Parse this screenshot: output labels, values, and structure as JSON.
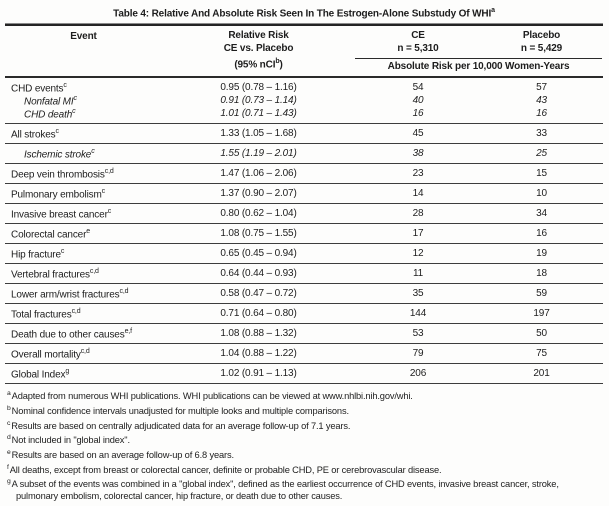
{
  "title": {
    "text": "Table 4: Relative And Absolute Risk Seen In The Estrogen-Alone Substudy Of WHI",
    "sup": "a"
  },
  "header": {
    "event": "Event",
    "relative_risk_line1": "Relative Risk",
    "relative_risk_line2": "CE vs. Placebo",
    "relative_risk_line3_pre": "(95% nCI",
    "relative_risk_line3_sup": "b",
    "relative_risk_line3_post": ")",
    "ce_label": "CE",
    "ce_n": "n = 5,310",
    "placebo_label": "Placebo",
    "placebo_n": "n = 5,429",
    "absolute_risk": "Absolute Risk per 10,000 Women-Years"
  },
  "table": {
    "rows": [
      {
        "event": "CHD events",
        "sup": "c",
        "relative_risk": "0.95 (0.78 – 1.16)",
        "ce": "54",
        "placebo": "57"
      },
      {
        "event": "Nonfatal MI",
        "sup": "c",
        "relative_risk": "0.91 (0.73 – 1.14)",
        "ce": "40",
        "placebo": "43"
      },
      {
        "event": "CHD death",
        "sup": "c",
        "relative_risk": "1.01 (0.71 – 1.43)",
        "ce": "16",
        "placebo": "16"
      },
      {
        "event": "All strokes",
        "sup": "c",
        "relative_risk": "1.33 (1.05 – 1.68)",
        "ce": "45",
        "placebo": "33"
      },
      {
        "event": "Ischemic stroke",
        "sup": "c",
        "relative_risk": "1.55 (1.19 – 2.01)",
        "ce": "38",
        "placebo": "25"
      },
      {
        "event": "Deep vein thrombosis",
        "sup": "c,d",
        "relative_risk": "1.47 (1.06 – 2.06)",
        "ce": "23",
        "placebo": "15"
      },
      {
        "event": "Pulmonary embolism",
        "sup": "c",
        "relative_risk": "1.37 (0.90 – 2.07)",
        "ce": "14",
        "placebo": "10"
      },
      {
        "event": "Invasive breast cancer",
        "sup": "c",
        "relative_risk": "0.80 (0.62 – 1.04)",
        "ce": "28",
        "placebo": "34"
      },
      {
        "event": "Colorectal cancer",
        "sup": "e",
        "relative_risk": "1.08 (0.75 – 1.55)",
        "ce": "17",
        "placebo": "16"
      },
      {
        "event": "Hip fracture",
        "sup": "c",
        "relative_risk": "0.65 (0.45 – 0.94)",
        "ce": "12",
        "placebo": "19"
      },
      {
        "event": "Vertebral fractures",
        "sup": "c,d",
        "relative_risk": "0.64 (0.44 – 0.93)",
        "ce": "11",
        "placebo": "18"
      },
      {
        "event": "Lower arm/wrist fractures",
        "sup": "c,d",
        "relative_risk": "0.58 (0.47 – 0.72)",
        "ce": "35",
        "placebo": "59"
      },
      {
        "event": "Total fractures",
        "sup": "c,d",
        "relative_risk": "0.71 (0.64 – 0.80)",
        "ce": "144",
        "placebo": "197"
      },
      {
        "event": "Death due to other causes",
        "sup": "e,f",
        "relative_risk": "1.08 (0.88 – 1.32)",
        "ce": "53",
        "placebo": "50"
      },
      {
        "event": "Overall mortality",
        "sup": "c,d",
        "relative_risk": "1.04 (0.88 – 1.22)",
        "ce": "79",
        "placebo": "75"
      },
      {
        "event": "Global Index",
        "sup": "g",
        "relative_risk": "1.02 (0.91 – 1.13)",
        "ce": "206",
        "placebo": "201"
      }
    ]
  },
  "footnotes": [
    {
      "sup": "a",
      "text": "Adapted from numerous WHI publications. WHI publications can be viewed at www.nhlbi.nih.gov/whi."
    },
    {
      "sup": "b",
      "text": "Nominal confidence intervals unadjusted for multiple looks and multiple comparisons."
    },
    {
      "sup": "c",
      "text": "Results are based on centrally adjudicated data for an average follow-up of 7.1 years."
    },
    {
      "sup": "d",
      "text": "Not included in \"global index\"."
    },
    {
      "sup": "e",
      "text": "Results are based on an average follow-up of 6.8 years."
    },
    {
      "sup": "f",
      "text": "All deaths, except from breast or colorectal cancer, definite or probable CHD, PE or cerebrovascular disease."
    },
    {
      "sup": "g",
      "text": "A subset of the events was combined in a \"global index\", defined as the earliest occurrence of CHD events, invasive breast cancer, stroke, pulmonary embolism, colorectal  cancer, hip fracture, or death due to other causes."
    }
  ]
}
